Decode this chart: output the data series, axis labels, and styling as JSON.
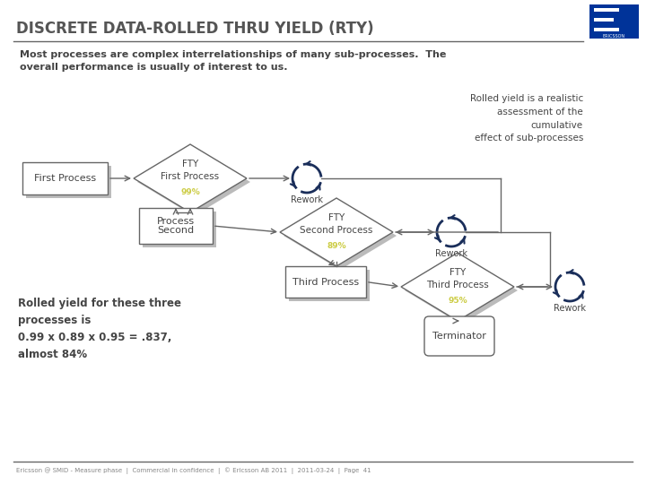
{
  "title": "DISCRETE DATA-ROLLED THRU YIELD (RTY)",
  "subtitle": "Most processes are complex interrelationships of many sub-processes.  The\noverall performance is usually of interest to us.",
  "title_color": "#555555",
  "bg_color": "#ffffff",
  "box_edge_color": "#666666",
  "box_fill": "#ffffff",
  "shadow_color": "#bbbbbb",
  "text_color": "#444444",
  "yellow_color": "#cccc44",
  "navy_color": "#1a2e5a",
  "footer": "Ericsson @ SMID - Measure phase  |  Commercial in confidence  |  © Ericsson AB 2011  |  2011-03-24  |  Page  41",
  "rty_note": "Rolled yield is a realistic\nassessment of the\ncumulative\neffect of sub-processes",
  "rolled_yield_text": "Rolled yield for these three\nprocesses is\n0.99 x 0.89 x 0.95 = .837,\nalmost 84%",
  "logo_color": "#003399"
}
